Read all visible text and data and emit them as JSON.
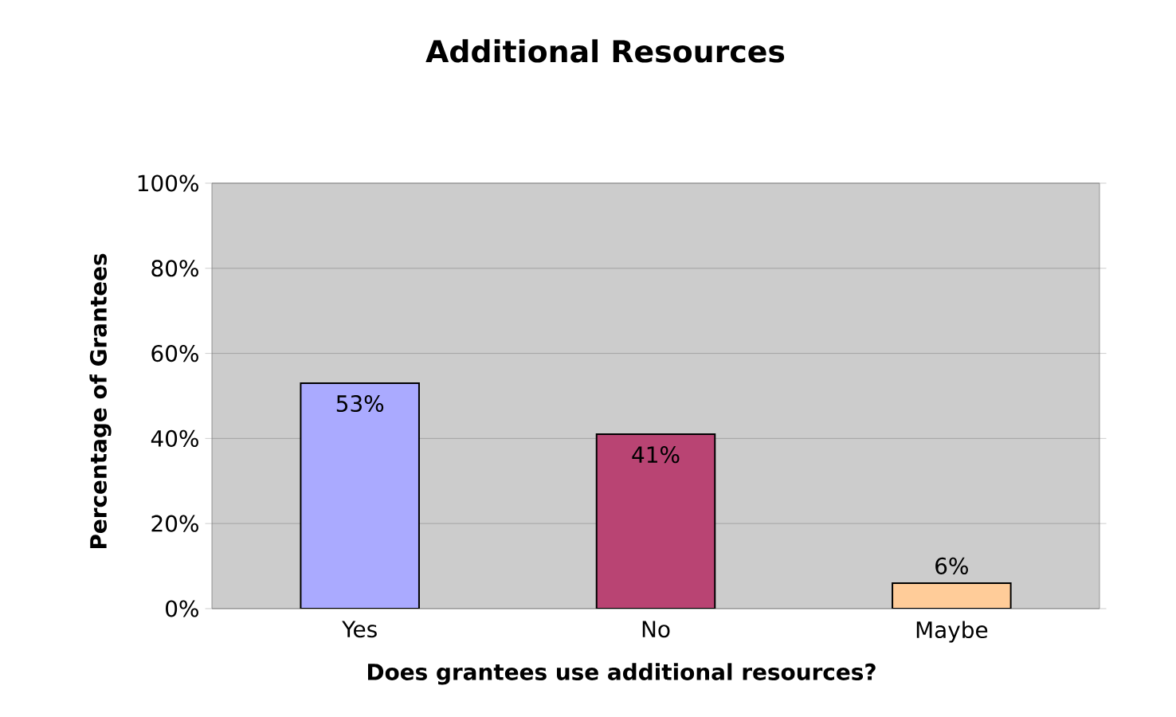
{
  "chart_data": {
    "type": "bar",
    "title": "Additional Resources",
    "xlabel": "Does grantees use additional resources?",
    "ylabel": "Percentage of Grantees",
    "categories": [
      "Yes",
      "No",
      "Maybe"
    ],
    "values": [
      53,
      41,
      6
    ],
    "colors": [
      "#aaaaff",
      "#b94473",
      "#ffcc99"
    ],
    "value_labels": [
      "53%",
      "41%",
      "6%"
    ],
    "ylim": [
      0,
      100
    ],
    "yticks": [
      {
        "value": 0,
        "label": "0%"
      },
      {
        "value": 20,
        "label": "20%"
      },
      {
        "value": 40,
        "label": "40%"
      },
      {
        "value": 60,
        "label": "60%"
      },
      {
        "value": 80,
        "label": "80%"
      },
      {
        "value": 100,
        "label": "100%"
      }
    ],
    "grid": true
  }
}
